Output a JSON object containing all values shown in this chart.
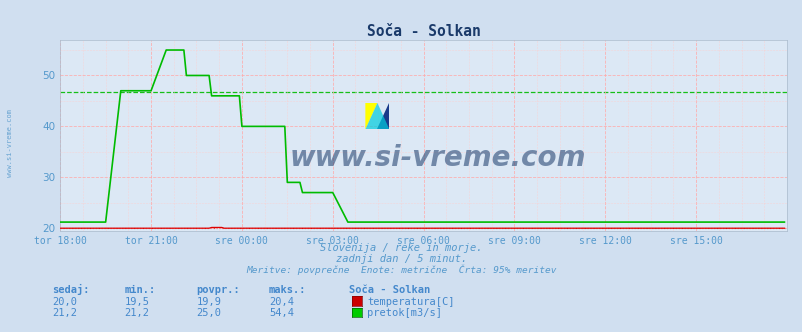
{
  "title": "Soča - Solkan",
  "bg_color": "#d0dff0",
  "plot_bg_color": "#dce8f5",
  "grid_color_major": "#ff9999",
  "grid_color_minor": "#ffcccc",
  "xlim": [
    0,
    288
  ],
  "ylim": [
    19.5,
    57
  ],
  "yticks": [
    20,
    30,
    40,
    50
  ],
  "xtick_labels": [
    "tor 18:00",
    "tor 21:00",
    "sre 00:00",
    "sre 03:00",
    "sre 06:00",
    "sre 09:00",
    "sre 12:00",
    "sre 15:00"
  ],
  "xtick_positions": [
    0,
    36,
    72,
    108,
    144,
    180,
    216,
    252
  ],
  "temp_color": "#dd0000",
  "flow_color": "#00bb00",
  "avg_flow_value": 46.7,
  "avg_temp_value": 20.0,
  "watermark_text": "www.si-vreme.com",
  "watermark_color": "#1a3a6a",
  "watermark_alpha": 0.55,
  "subtitle1": "Slovenija / reke in morje.",
  "subtitle2": "zadnji dan / 5 minut.",
  "subtitle3": "Meritve: povprečne  Enote: metrične  Črta: 95% meritev",
  "subtitle_color": "#5599cc",
  "table_header": [
    "sedaj:",
    "min.:",
    "povpr.:",
    "maks.:",
    "Soča - Solkan"
  ],
  "table_row1": [
    "20,0",
    "19,5",
    "19,9",
    "20,4",
    "temperatura[C]"
  ],
  "table_row2": [
    "21,2",
    "21,2",
    "25,0",
    "54,4",
    "pretok[m3/s]"
  ],
  "table_color": "#4488cc",
  "label_color1": "#cc0000",
  "label_color2": "#00cc00",
  "side_text": "www.si-vreme.com",
  "side_text_color": "#5599cc"
}
